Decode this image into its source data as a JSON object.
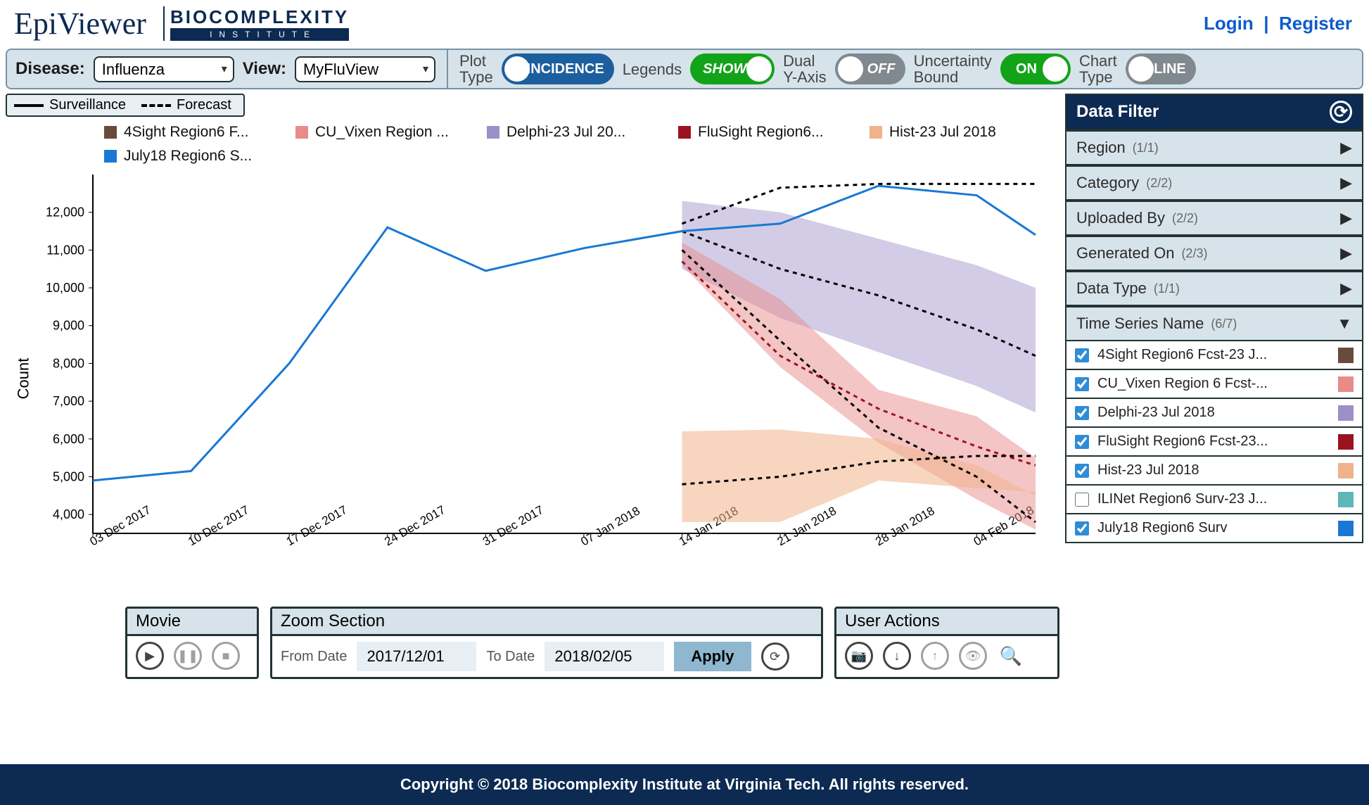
{
  "header": {
    "logo_primary": "EpiViewer",
    "logo_secondary_top": "BIOCOMPLEXITY",
    "logo_secondary_bottom": "INSTITUTE",
    "login": "Login",
    "register": "Register"
  },
  "toolbar": {
    "disease_label": "Disease:",
    "disease_value": "Influenza",
    "view_label": "View:",
    "view_value": "MyFluView",
    "plot_type_label_l1": "Plot",
    "plot_type_label_l2": "Type",
    "plot_type_value": "INCIDENCE",
    "legends_label": "Legends",
    "legends_value": "SHOW",
    "dual_y_label_l1": "Dual",
    "dual_y_label_l2": "Y-Axis",
    "dual_y_value": "OFF",
    "unc_label_l1": "Uncertainty",
    "unc_label_l2": "Bound",
    "unc_value": "ON",
    "chart_type_label_l1": "Chart",
    "chart_type_label_l2": "Type",
    "chart_type_value": "LINE"
  },
  "chart": {
    "legend_surv": "Surveillance",
    "legend_fcst": "Forecast",
    "y_axis_label": "Count",
    "y_ticks": [
      "4,000",
      "5,000",
      "6,000",
      "7,000",
      "8,000",
      "9,000",
      "10,000",
      "11,000",
      "12,000"
    ],
    "y_tick_values": [
      4000,
      5000,
      6000,
      7000,
      8000,
      9000,
      10000,
      11000,
      12000
    ],
    "ylim": [
      3500,
      13000
    ],
    "x_ticks": [
      "03 Dec 2017",
      "10 Dec 2017",
      "17 Dec 2017",
      "24 Dec 2017",
      "31 Dec 2017",
      "07 Jan 2018",
      "14 Jan 2018",
      "21 Jan 2018",
      "28 Jan 2018",
      "04 Feb 2018"
    ],
    "x_positions": [
      0,
      1,
      2,
      3,
      4,
      5,
      6,
      7,
      8,
      9
    ],
    "series_legend": [
      {
        "label": "4Sight Region6 F...",
        "color": "#6a4a3a"
      },
      {
        "label": "CU_Vixen Region ...",
        "color": "#e98b8b"
      },
      {
        "label": "Delphi-23 Jul 20...",
        "color": "#9d8fc8"
      },
      {
        "label": "FluSight Region6...",
        "color": "#9c1320"
      },
      {
        "label": "Hist-23 Jul 2018",
        "color": "#f0b28a"
      },
      {
        "label": "July18 Region6 S...",
        "color": "#1978d4"
      }
    ],
    "surveillance_line": {
      "color": "#1978d4",
      "width": 3,
      "points": [
        [
          0,
          4900
        ],
        [
          1,
          5150
        ],
        [
          2,
          8000
        ],
        [
          3,
          11600
        ],
        [
          4,
          10450
        ],
        [
          5,
          11050
        ],
        [
          6,
          11500
        ],
        [
          7,
          11700
        ],
        [
          8,
          12700
        ],
        [
          9,
          12450
        ],
        [
          9.6,
          11400
        ]
      ]
    },
    "forecast_lines": [
      {
        "name": "delphi",
        "dash": "6,6",
        "color": "#000",
        "width": 3,
        "points": [
          [
            6,
            11700
          ],
          [
            7,
            12650
          ],
          [
            8,
            12750
          ],
          [
            9,
            12750
          ],
          [
            9.6,
            12750
          ]
        ]
      },
      {
        "name": "4sight",
        "dash": "6,6",
        "color": "#000",
        "width": 3,
        "points": [
          [
            6,
            11500
          ],
          [
            7,
            10500
          ],
          [
            8,
            9800
          ],
          [
            9,
            8900
          ],
          [
            9.6,
            8200
          ]
        ]
      },
      {
        "name": "cuvixen",
        "dash": "6,6",
        "color": "#000",
        "width": 3,
        "points": [
          [
            6,
            11000
          ],
          [
            7,
            8600
          ],
          [
            8,
            6300
          ],
          [
            9,
            5000
          ],
          [
            9.6,
            3800
          ]
        ]
      },
      {
        "name": "flusight",
        "dash": "6,6",
        "color": "#9c1320",
        "width": 3,
        "points": [
          [
            6,
            10700
          ],
          [
            7,
            8200
          ],
          [
            8,
            6800
          ],
          [
            9,
            5800
          ],
          [
            9.6,
            5300
          ]
        ]
      },
      {
        "name": "hist",
        "dash": "6,6",
        "color": "#000",
        "width": 3,
        "points": [
          [
            6,
            4800
          ],
          [
            7,
            5000
          ],
          [
            8,
            5400
          ],
          [
            9,
            5550
          ],
          [
            9.6,
            5550
          ]
        ]
      }
    ],
    "uncertainty_bands": [
      {
        "name": "delphi-band",
        "color": "#9d8fc8",
        "opacity": 0.45,
        "upper": [
          [
            6,
            12300
          ],
          [
            7,
            12000
          ],
          [
            8,
            11300
          ],
          [
            9,
            10600
          ],
          [
            9.6,
            10000
          ]
        ],
        "lower": [
          [
            6,
            10500
          ],
          [
            7,
            9200
          ],
          [
            8,
            8300
          ],
          [
            9,
            7400
          ],
          [
            9.6,
            6700
          ]
        ]
      },
      {
        "name": "cuvixen-band",
        "color": "#e98b8b",
        "opacity": 0.5,
        "upper": [
          [
            6,
            11200
          ],
          [
            7,
            9700
          ],
          [
            8,
            7300
          ],
          [
            9,
            6600
          ],
          [
            9.6,
            5500
          ]
        ],
        "lower": [
          [
            6,
            10600
          ],
          [
            7,
            7900
          ],
          [
            8,
            5900
          ],
          [
            9,
            4400
          ],
          [
            9.6,
            3600
          ]
        ]
      },
      {
        "name": "hist-band",
        "color": "#f0b28a",
        "opacity": 0.55,
        "upper": [
          [
            6,
            6200
          ],
          [
            7,
            6250
          ],
          [
            8,
            6000
          ],
          [
            9,
            5300
          ],
          [
            9.6,
            4500
          ]
        ],
        "lower": [
          [
            6,
            3800
          ],
          [
            7,
            3800
          ],
          [
            8,
            4900
          ],
          [
            9,
            4700
          ],
          [
            9.6,
            4600
          ]
        ]
      }
    ],
    "plot_bg": "#ffffff",
    "axis_color": "#000000"
  },
  "bottom": {
    "movie_title": "Movie",
    "zoom_title": "Zoom Section",
    "zoom_from_lbl": "From Date",
    "zoom_from_val": "2017/12/01",
    "zoom_to_lbl": "To Date",
    "zoom_to_val": "2018/02/05",
    "apply": "Apply",
    "actions_title": "User Actions"
  },
  "sidebar": {
    "title": "Data Filter",
    "rows": [
      {
        "label": "Region",
        "count": "(1/1)"
      },
      {
        "label": "Category",
        "count": "(2/2)"
      },
      {
        "label": "Uploaded By",
        "count": "(2/2)"
      },
      {
        "label": "Generated On",
        "count": "(2/3)"
      },
      {
        "label": "Data Type",
        "count": "(1/1)"
      }
    ],
    "ts_label": "Time Series Name",
    "ts_count": "(6/7)",
    "ts_items": [
      {
        "checked": true,
        "label": "4Sight Region6 Fcst-23 J...",
        "color": "#6a4a3a"
      },
      {
        "checked": true,
        "label": "CU_Vixen Region 6 Fcst-...",
        "color": "#e98b8b"
      },
      {
        "checked": true,
        "label": "Delphi-23 Jul 2018",
        "color": "#9d8fc8"
      },
      {
        "checked": true,
        "label": "FluSight Region6 Fcst-23...",
        "color": "#9c1320"
      },
      {
        "checked": true,
        "label": "Hist-23 Jul 2018",
        "color": "#f0b28a"
      },
      {
        "checked": false,
        "label": "ILINet Region6 Surv-23 J...",
        "color": "#5eb7b7"
      },
      {
        "checked": true,
        "label": "July18 Region6 Surv",
        "color": "#1978d4"
      }
    ]
  },
  "footer": "Copyright © 2018 Biocomplexity Institute at Virginia Tech. All rights reserved."
}
